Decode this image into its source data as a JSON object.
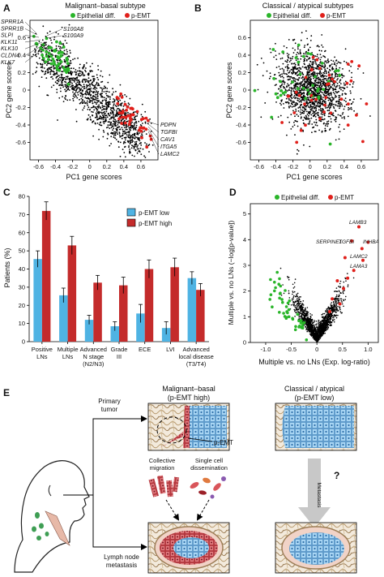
{
  "colors": {
    "epithelial": "#2ab52a",
    "pemt": "#e0201b",
    "background_points": "#000000",
    "bar_low": "#4fb3e3",
    "bar_high": "#c42b2b",
    "arrow_gray": "#c8c8c8"
  },
  "panels": {
    "A": {
      "letter": "A",
      "title": "Malignant–basal subtype"
    },
    "B": {
      "letter": "B",
      "title": "Classical / atypical subtypes"
    },
    "C": {
      "letter": "C"
    },
    "D": {
      "letter": "D"
    },
    "E": {
      "letter": "E"
    }
  },
  "legend": {
    "epithelial": "Epithelial diff.",
    "pemt": "p-EMT"
  },
  "chart_data": [
    {
      "id": "A",
      "type": "scatter",
      "title": "Malignant–basal subtype",
      "xlabel": "PC1 gene scores",
      "ylabel": "PC2 gene scores",
      "xlim": [
        -0.7,
        0.8
      ],
      "ylim": [
        -0.8,
        0.8
      ],
      "xticks": [
        "-0.6",
        "-0.4",
        "-0.2",
        "0",
        "0.2",
        "0.4",
        "0.6"
      ],
      "yticks": [
        "-0.6",
        "-0.4",
        "-0.2",
        "0",
        "0.2",
        "0.4",
        "0.6"
      ],
      "series": [
        {
          "name": "Epithelial diff.",
          "color_key": "epithelial"
        },
        {
          "name": "p-EMT",
          "color_key": "pemt"
        }
      ],
      "labels_left": [
        "SPRR1A",
        "SPRR1B",
        "SLPI",
        "KLK11",
        "KLK10",
        "CLDN4",
        "KLK7"
      ],
      "labels_mid": [
        "S100A8",
        "S100A9"
      ],
      "labels_right": [
        "PDPN",
        "TGFBI",
        "CAV1",
        "ITGA5",
        "LAMC2"
      ]
    },
    {
      "id": "B",
      "type": "scatter",
      "title": "Classical / atypical subtypes",
      "xlabel": "PC1 gene scores",
      "ylabel": "PC2 gene scores",
      "xlim": [
        -0.7,
        0.8
      ],
      "ylim": [
        -0.8,
        0.8
      ],
      "xticks": [
        "-0.6",
        "-0.4",
        "-0.2",
        "0",
        "0.2",
        "0.4",
        "0.6"
      ],
      "yticks": [
        "-0.6",
        "-0.4",
        "-0.2",
        "0",
        "0.2",
        "0.4",
        "0.6"
      ],
      "series": [
        {
          "name": "Epithelial diff.",
          "color_key": "epithelial"
        },
        {
          "name": "p-EMT",
          "color_key": "pemt"
        }
      ]
    },
    {
      "id": "C",
      "type": "bar",
      "ylabel": "Patients (%)",
      "ylim": [
        0,
        80
      ],
      "yticks": [
        "0",
        "10",
        "20",
        "30",
        "40",
        "50",
        "60",
        "70",
        "80"
      ],
      "categories": [
        [
          "Positive",
          "LNs"
        ],
        [
          "Multiple",
          "LNs"
        ],
        [
          "Advanced",
          "N stage",
          "(N2/N3)"
        ],
        [
          "Grade",
          "III"
        ],
        [
          "ECE"
        ],
        [
          "LVI"
        ],
        [
          "Advanced",
          "local disease",
          "(T3/T4)"
        ]
      ],
      "series": [
        {
          "name": "p-EMT low",
          "color_key": "bar_low",
          "values": [
            45.5,
            25.5,
            12,
            8.5,
            15.5,
            7.5,
            35
          ],
          "errors": [
            4.5,
            4,
            2.5,
            2.5,
            5,
            3.5,
            3.5
          ]
        },
        {
          "name": "p-EMT high",
          "color_key": "bar_high",
          "values": [
            72,
            53,
            32.5,
            31,
            40,
            41,
            28.5
          ],
          "errors": [
            5,
            5,
            4,
            4.5,
            5,
            5,
            3.5
          ]
        }
      ]
    },
    {
      "id": "D",
      "type": "scatter",
      "xlabel": "Multiple vs. no LNs (Exp. log-ratio)",
      "ylabel": "Multiple vs. no LNs (−log[p-value])",
      "xlim": [
        -1.3,
        1.2
      ],
      "ylim": [
        0,
        5.4
      ],
      "xticks": [
        "-1.0",
        "-0.5",
        "0",
        "0.5",
        "1.0"
      ],
      "yticks": [
        "0",
        "1",
        "2",
        "3",
        "4",
        "5"
      ],
      "series": [
        {
          "name": "Epithelial diff.",
          "color_key": "epithelial"
        },
        {
          "name": "p-EMT",
          "color_key": "pemt"
        }
      ],
      "labels": [
        "LAMB3",
        "SERPINE1",
        "TGFBI",
        "INHBA",
        "LAMC2",
        "LAMA3"
      ]
    }
  ],
  "panel_e": {
    "col1_title_line1": "Malignant–basal",
    "col1_title_line2": "(p-EMT high)",
    "col2_title": "Classical / atypical",
    "col2_title_line2": "(p-EMT low)",
    "primary_tumor_line1": "Primary",
    "primary_tumor_line2": "tumor",
    "pemt_label": "p-EMT",
    "collective_line1": "Collective",
    "collective_line2": "migration",
    "single_line1": "Single cell",
    "single_line2": "dissemination",
    "metastasis_arrow": "Metastasis",
    "question": "?",
    "ln_line1": "Lymph node",
    "ln_line2": "metastasis"
  }
}
